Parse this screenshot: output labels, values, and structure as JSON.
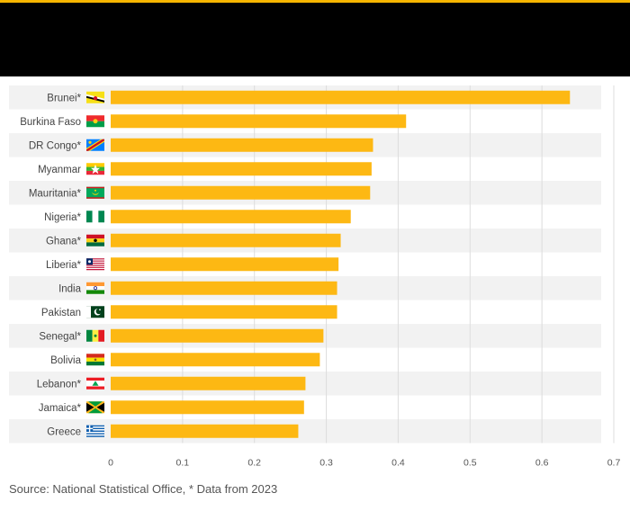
{
  "colors": {
    "bar": "#fdb813",
    "accent": "#f7b500",
    "header": "#000000",
    "stripe": "#f2f2f2",
    "grid": "#dddddd",
    "label": "#444444"
  },
  "source": "Source: National Statistical Office, * Data from 2023",
  "chart_data": {
    "type": "bar",
    "orientation": "horizontal",
    "categories": [
      "Brunei*",
      "Burkina Faso",
      "DR Congo*",
      "Myanmar",
      "Mauritania*",
      "Nigeria*",
      "Ghana*",
      "Liberia*",
      "India",
      "Pakistan",
      "Senegal*",
      "Bolivia",
      "Lebanon*",
      "Jamaica*",
      "Greece"
    ],
    "flags": [
      "brunei-flag-icon",
      "burkina-faso-flag-icon",
      "dr-congo-flag-icon",
      "myanmar-flag-icon",
      "mauritania-flag-icon",
      "nigeria-flag-icon",
      "ghana-flag-icon",
      "liberia-flag-icon",
      "india-flag-icon",
      "pakistan-flag-icon",
      "senegal-flag-icon",
      "bolivia-flag-icon",
      "lebanon-flag-icon",
      "jamaica-flag-icon",
      "greece-flag-icon"
    ],
    "values": [
      0.639,
      0.411,
      0.365,
      0.363,
      0.361,
      0.334,
      0.32,
      0.317,
      0.315,
      0.315,
      0.296,
      0.291,
      0.271,
      0.269,
      0.261
    ],
    "title": "",
    "xlabel": "",
    "ylabel": "",
    "xlim": [
      0,
      0.7
    ],
    "ticks": [
      "0",
      "0.1",
      "0.2",
      "0.3",
      "0.4",
      "0.5",
      "0.6",
      "0.7"
    ],
    "grid": true,
    "legend": "none"
  }
}
